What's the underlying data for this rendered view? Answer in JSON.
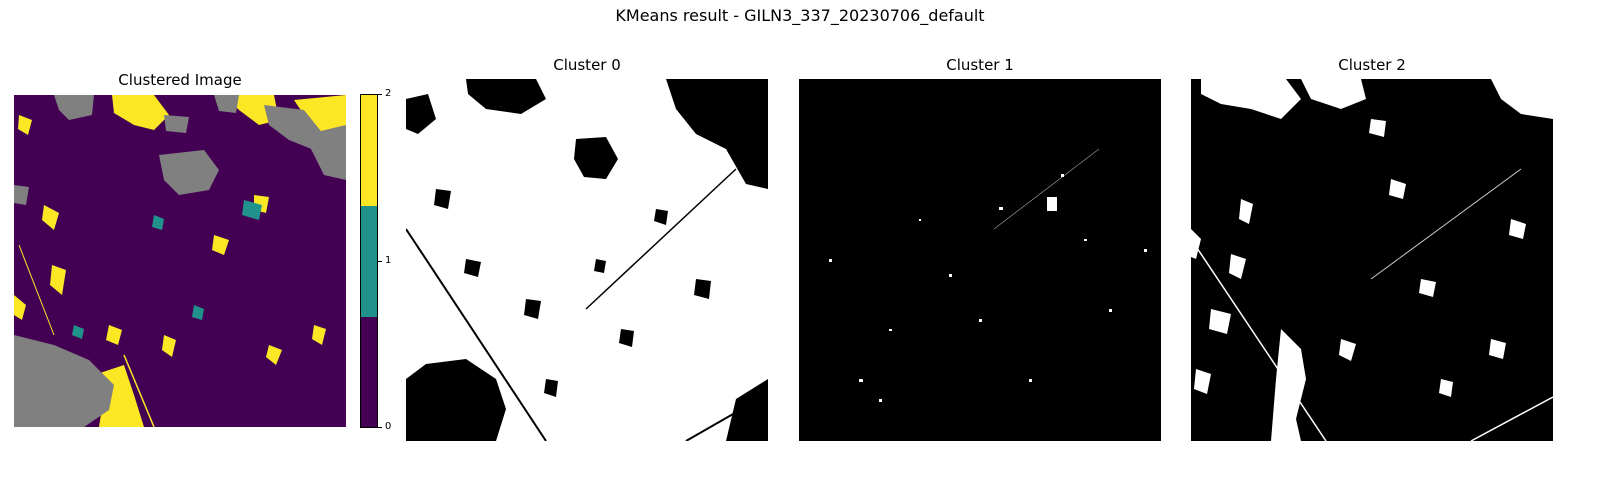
{
  "figure": {
    "title": "KMeans result - GILN3_337_20230706_default"
  },
  "chart_data": [
    {
      "type": "heatmap",
      "title": "Clustered Image",
      "colormap": "viridis",
      "masked_color": "#808080",
      "colorbar": {
        "ticks": [
          "0",
          "1",
          "2"
        ],
        "ylim": [
          0,
          2
        ],
        "colors": [
          "#440154",
          "#21918c",
          "#fde725"
        ]
      },
      "legend": "right"
    },
    {
      "type": "heatmap",
      "title": "Cluster 0",
      "colors": [
        "#000000",
        "#ffffff"
      ]
    },
    {
      "type": "heatmap",
      "title": "Cluster 1",
      "colors": [
        "#000000",
        "#ffffff"
      ]
    },
    {
      "type": "heatmap",
      "title": "Cluster 2",
      "colors": [
        "#000000",
        "#ffffff"
      ]
    }
  ]
}
